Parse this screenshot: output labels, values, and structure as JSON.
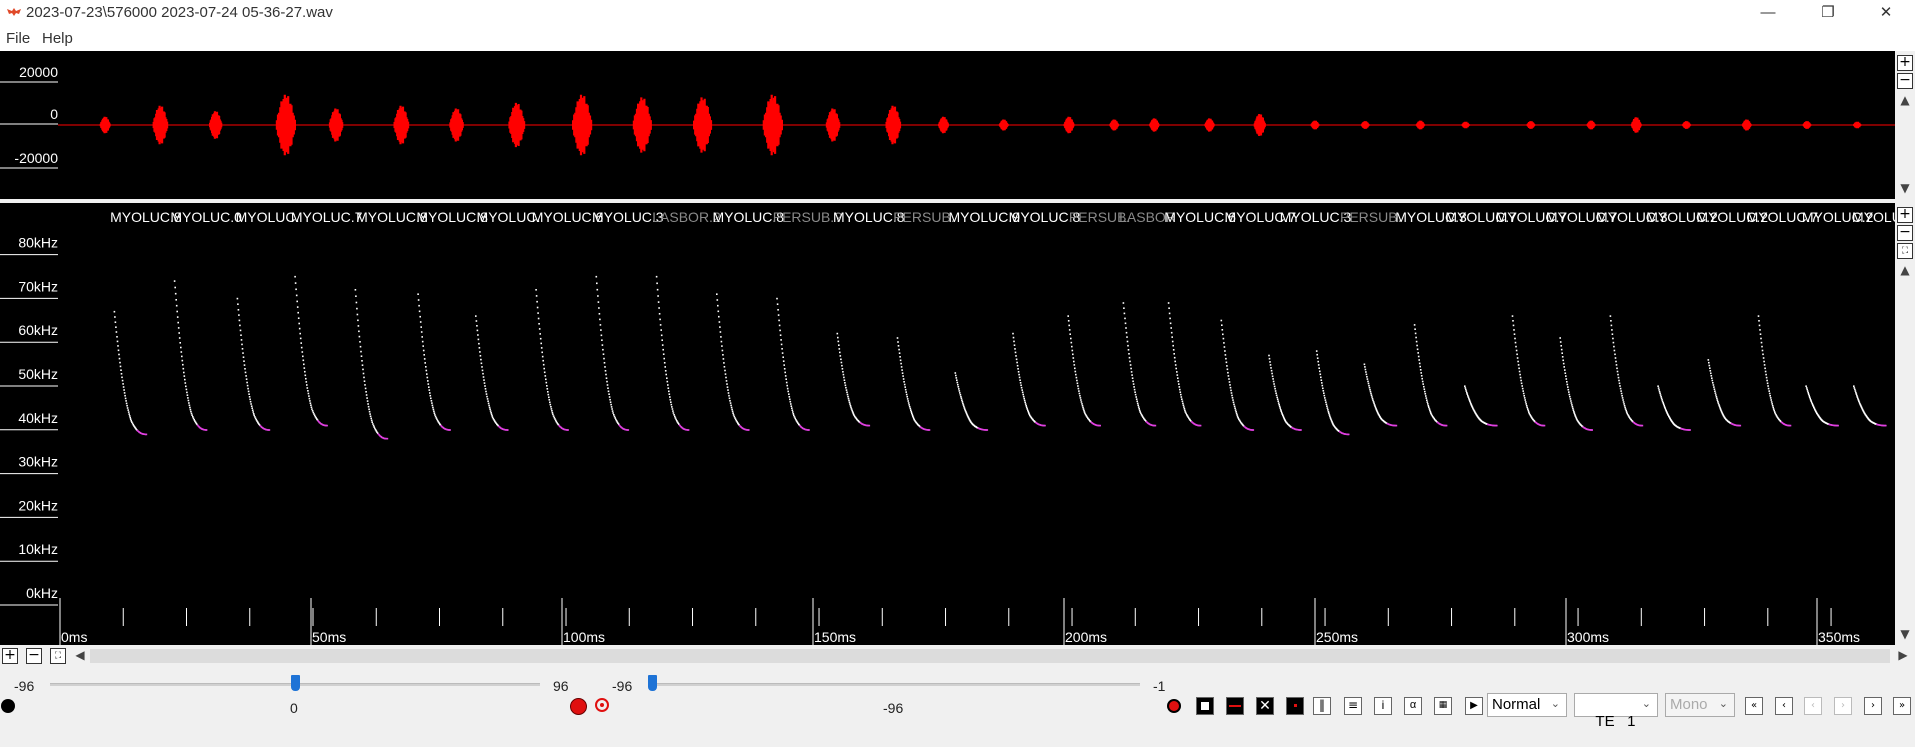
{
  "window": {
    "title": "2023-07-23\\576000 2023-07-24 05-36-27.wav",
    "controls": [
      "—",
      "❐",
      "✕"
    ]
  },
  "menu": [
    "File",
    "Help"
  ],
  "waveform": {
    "y_ticks": [
      "20000",
      "0",
      "-20000"
    ],
    "color": "#ff0000",
    "bursts_ms": [
      9,
      20,
      31,
      45,
      55,
      68,
      79,
      91,
      104,
      116,
      128,
      142,
      154,
      166,
      176,
      188,
      201,
      210,
      218,
      229,
      239,
      250,
      260,
      271,
      280,
      293,
      305,
      314,
      324,
      336,
      348,
      358
    ],
    "burst_amplitude": [
      0.15,
      0.35,
      0.25,
      0.55,
      0.3,
      0.35,
      0.3,
      0.4,
      0.55,
      0.5,
      0.5,
      0.55,
      0.3,
      0.35,
      0.15,
      0.1,
      0.15,
      0.1,
      0.12,
      0.12,
      0.2,
      0.08,
      0.07,
      0.08,
      0.06,
      0.07,
      0.08,
      0.14,
      0.07,
      0.1,
      0.07,
      0.06
    ]
  },
  "spectrogram": {
    "y_ticks": [
      "80kHz",
      "70kHz",
      "60kHz",
      "50kHz",
      "40kHz",
      "30kHz",
      "20kHz",
      "10kHz",
      "0kHz"
    ],
    "x_ticks": [
      "0ms",
      "50ms",
      "100ms",
      "150ms",
      "200ms",
      "250ms",
      "300ms",
      "350ms"
    ],
    "x_range_ms": [
      0,
      362
    ],
    "call_colors": {
      "body": "#ffffff",
      "tail": "#e040e0"
    },
    "species_labels": [
      {
        "text": "MYOLUC.8",
        "ms": 5,
        "dim": false
      },
      {
        "text": "MYOLUC.0",
        "ms": 17,
        "dim": false
      },
      {
        "text": "MYOLUC.",
        "ms": 30,
        "dim": false
      },
      {
        "text": "MYOLUC.7",
        "ms": 41,
        "dim": false
      },
      {
        "text": "MYOLUC.8",
        "ms": 54,
        "dim": false
      },
      {
        "text": "MYOLUC.8",
        "ms": 66,
        "dim": false
      },
      {
        "text": "MYOLUC.",
        "ms": 78,
        "dim": false
      },
      {
        "text": "MYOLUC.6",
        "ms": 89,
        "dim": false
      },
      {
        "text": "MYOLUC.3",
        "ms": 101,
        "dim": false
      },
      {
        "text": "LASBOR.2",
        "ms": 113,
        "dim": true
      },
      {
        "text": "MYOLUC.8",
        "ms": 125,
        "dim": false
      },
      {
        "text": "PERSUB.?",
        "ms": 137,
        "dim": true
      },
      {
        "text": "MYOLUC.8",
        "ms": 149,
        "dim": false
      },
      {
        "text": "PERSUB.",
        "ms": 161,
        "dim": true
      },
      {
        "text": "MYOLUC.9",
        "ms": 172,
        "dim": false
      },
      {
        "text": "MYOLUC.8",
        "ms": 184,
        "dim": false
      },
      {
        "text": "PERSUB.",
        "ms": 196,
        "dim": true
      },
      {
        "text": "LASBOR",
        "ms": 206,
        "dim": true
      },
      {
        "text": "MYOLUC.6",
        "ms": 215,
        "dim": false
      },
      {
        "text": "MYOLUC.7",
        "ms": 227,
        "dim": false
      },
      {
        "text": "MYOLUC.3",
        "ms": 238,
        "dim": false
      },
      {
        "text": "PERSUB.",
        "ms": 250,
        "dim": true
      },
      {
        "text": "MYOLUC.3",
        "ms": 261,
        "dim": false
      },
      {
        "text": "MYOLUC.7",
        "ms": 271,
        "dim": false
      },
      {
        "text": "MYOLUC.7",
        "ms": 281,
        "dim": false
      },
      {
        "text": "MYOLUC.7",
        "ms": 291,
        "dim": false
      },
      {
        "text": "MYOLUC.3",
        "ms": 301,
        "dim": false
      },
      {
        "text": "MYOLUC.2",
        "ms": 311,
        "dim": false
      },
      {
        "text": "MYOLUC.2",
        "ms": 321,
        "dim": false
      },
      {
        "text": "MYOLUC.7",
        "ms": 331,
        "dim": false
      },
      {
        "text": "MYOLUC.2",
        "ms": 342,
        "dim": false
      },
      {
        "text": "MYOLUC.",
        "ms": 352,
        "dim": false
      }
    ],
    "calls": [
      {
        "ms": 5.5,
        "top_khz": 66,
        "end_khz": 38
      },
      {
        "ms": 17.5,
        "top_khz": 73,
        "end_khz": 39
      },
      {
        "ms": 30,
        "top_khz": 69,
        "end_khz": 39
      },
      {
        "ms": 41.5,
        "top_khz": 74,
        "end_khz": 40
      },
      {
        "ms": 53.5,
        "top_khz": 71,
        "end_khz": 37
      },
      {
        "ms": 66,
        "top_khz": 70,
        "end_khz": 39
      },
      {
        "ms": 77.5,
        "top_khz": 65,
        "end_khz": 39
      },
      {
        "ms": 89.5,
        "top_khz": 71,
        "end_khz": 39
      },
      {
        "ms": 101.5,
        "top_khz": 74,
        "end_khz": 39
      },
      {
        "ms": 113.5,
        "top_khz": 74,
        "end_khz": 39
      },
      {
        "ms": 125.5,
        "top_khz": 70,
        "end_khz": 39
      },
      {
        "ms": 137.5,
        "top_khz": 69,
        "end_khz": 39
      },
      {
        "ms": 149.5,
        "top_khz": 61,
        "end_khz": 40
      },
      {
        "ms": 161.5,
        "top_khz": 60,
        "end_khz": 39
      },
      {
        "ms": 173,
        "top_khz": 52,
        "end_khz": 39
      },
      {
        "ms": 184.5,
        "top_khz": 61,
        "end_khz": 40
      },
      {
        "ms": 195.5,
        "top_khz": 65,
        "end_khz": 40
      },
      {
        "ms": 206.5,
        "top_khz": 68,
        "end_khz": 40
      },
      {
        "ms": 215.5,
        "top_khz": 68,
        "end_khz": 40
      },
      {
        "ms": 226,
        "top_khz": 64,
        "end_khz": 39
      },
      {
        "ms": 235.5,
        "top_khz": 56,
        "end_khz": 39
      },
      {
        "ms": 245,
        "top_khz": 57,
        "end_khz": 38
      },
      {
        "ms": 254.5,
        "top_khz": 54,
        "end_khz": 40
      },
      {
        "ms": 264.5,
        "top_khz": 63,
        "end_khz": 40
      },
      {
        "ms": 274.5,
        "top_khz": 49,
        "end_khz": 40
      },
      {
        "ms": 284,
        "top_khz": 65,
        "end_khz": 40
      },
      {
        "ms": 293.5,
        "top_khz": 60,
        "end_khz": 39
      },
      {
        "ms": 303.5,
        "top_khz": 65,
        "end_khz": 40
      },
      {
        "ms": 313,
        "top_khz": 49,
        "end_khz": 39
      },
      {
        "ms": 323,
        "top_khz": 55,
        "end_khz": 40
      },
      {
        "ms": 333,
        "top_khz": 65,
        "end_khz": 40
      },
      {
        "ms": 342.5,
        "top_khz": 49,
        "end_khz": 40
      },
      {
        "ms": 352,
        "top_khz": 49,
        "end_khz": 40
      }
    ]
  },
  "controls": {
    "slider1": {
      "min": "-96",
      "max": "96",
      "value": "0",
      "fraction": 0.5
    },
    "slider2": {
      "min": "-96",
      "max": "-1",
      "value": "-96",
      "fraction": 0.0
    },
    "mode_select": "Normal",
    "te_select": "TE   1",
    "channel_select": "Mono"
  }
}
